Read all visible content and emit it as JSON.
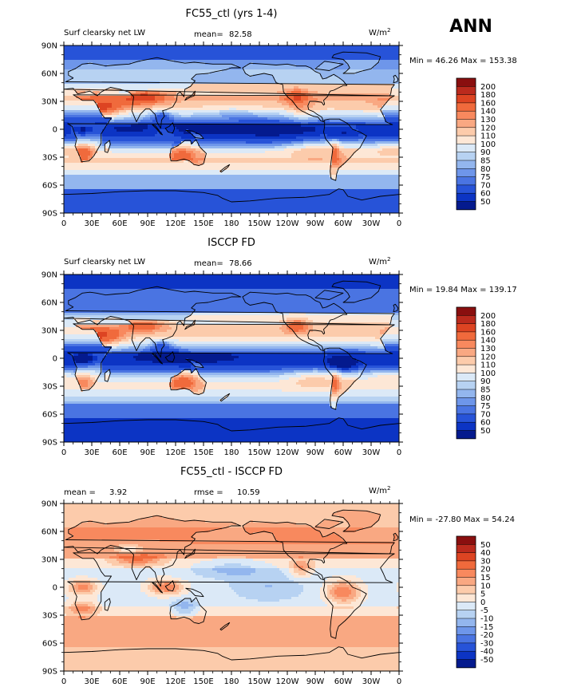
{
  "season": "ANN",
  "panels": [
    {
      "id": "model",
      "title": "FC55_ctl (yrs 1-4)",
      "variable": "Surf clearsky net LW",
      "stat1_label": "mean=",
      "stat1_value": "82.58",
      "stat2_label": "",
      "stat2_value": "",
      "units_base": "W/m",
      "units_exp": "2",
      "minmax": "Min =  46.26 Max = 153.38",
      "scale": "abs",
      "colorbar_levels": [
        "200",
        "180",
        "160",
        "140",
        "130",
        "120",
        "110",
        "100",
        "90",
        "85",
        "80",
        "75",
        "70",
        "60",
        "50"
      ],
      "colorbar_colors": [
        "#8a0f0f",
        "#bb2a1d",
        "#dd4422",
        "#f06a3c",
        "#f8895e",
        "#f9a882",
        "#fccbab",
        "#fde7d6",
        "#dbe9f7",
        "#b7d2f2",
        "#93b6ee",
        "#6e96ea",
        "#4a74e2",
        "#2753d8",
        "#0c34c4",
        "#041a8e"
      ]
    },
    {
      "id": "obs",
      "title": "ISCCP FD",
      "variable": "Surf clearsky net LW",
      "stat1_label": "mean=",
      "stat1_value": "78.66",
      "stat2_label": "",
      "stat2_value": "",
      "units_base": "W/m",
      "units_exp": "2",
      "minmax": "Min =  19.84 Max = 139.17",
      "scale": "abs",
      "colorbar_levels": [
        "200",
        "180",
        "160",
        "140",
        "130",
        "120",
        "110",
        "100",
        "90",
        "85",
        "80",
        "75",
        "70",
        "60",
        "50"
      ],
      "colorbar_colors": [
        "#8a0f0f",
        "#bb2a1d",
        "#dd4422",
        "#f06a3c",
        "#f8895e",
        "#f9a882",
        "#fccbab",
        "#fde7d6",
        "#dbe9f7",
        "#b7d2f2",
        "#93b6ee",
        "#6e96ea",
        "#4a74e2",
        "#2753d8",
        "#0c34c4",
        "#041a8e"
      ]
    },
    {
      "id": "diff",
      "title": "FC55_ctl - ISCCP FD",
      "variable": "",
      "stat1_label": "mean =",
      "stat1_value": "3.92",
      "stat2_label": "rmse =",
      "stat2_value": "10.59",
      "units_base": "W/m",
      "units_exp": "2",
      "minmax": "Min = -27.80 Max =  54.24",
      "scale": "diff",
      "colorbar_levels": [
        "50",
        "40",
        "30",
        "20",
        "15",
        "10",
        "5",
        "0",
        "-5",
        "-10",
        "-15",
        "-20",
        "-30",
        "-40",
        "-50"
      ],
      "colorbar_colors": [
        "#8a0f0f",
        "#bb2a1d",
        "#dd4422",
        "#f06a3c",
        "#f8895e",
        "#f9a882",
        "#fccbab",
        "#fde7d6",
        "#dbe9f7",
        "#b7d2f2",
        "#93b6ee",
        "#6e96ea",
        "#4a74e2",
        "#2753d8",
        "#0c34c4",
        "#041a8e"
      ]
    }
  ],
  "lat_labels": [
    "90N",
    "60N",
    "30N",
    "0",
    "30S",
    "60S",
    "90S"
  ],
  "lon_labels": [
    "0",
    "30E",
    "60E",
    "90E",
    "120E",
    "150E",
    "180",
    "150W",
    "120W",
    "90W",
    "60W",
    "30W",
    "0"
  ]
}
